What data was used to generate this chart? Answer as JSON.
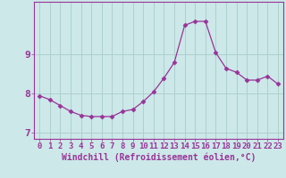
{
  "x": [
    0,
    1,
    2,
    3,
    4,
    5,
    6,
    7,
    8,
    9,
    10,
    11,
    12,
    13,
    14,
    15,
    16,
    17,
    18,
    19,
    20,
    21,
    22,
    23
  ],
  "y": [
    7.95,
    7.85,
    7.7,
    7.55,
    7.45,
    7.42,
    7.42,
    7.42,
    7.55,
    7.6,
    7.8,
    8.05,
    8.4,
    8.8,
    9.75,
    9.85,
    9.85,
    9.05,
    8.65,
    8.55,
    8.35,
    8.35,
    8.45,
    8.25
  ],
  "line_color": "#993399",
  "marker": "D",
  "marker_size": 2.5,
  "bg_color": "#cce8e8",
  "grid_color": "#aacccc",
  "xlabel": "Windchill (Refroidissement éolien,°C)",
  "xlim": [
    -0.5,
    23.5
  ],
  "ylim": [
    6.85,
    10.35
  ],
  "yticks": [
    7,
    8,
    9
  ],
  "xticks": [
    0,
    1,
    2,
    3,
    4,
    5,
    6,
    7,
    8,
    9,
    10,
    11,
    12,
    13,
    14,
    15,
    16,
    17,
    18,
    19,
    20,
    21,
    22,
    23
  ],
  "line_color_hex": "#993399",
  "tick_color": "#993399",
  "spine_color": "#993399",
  "xlabel_fontsize": 7.0,
  "tick_fontsize": 6.5,
  "ytick_fontsize": 8.0
}
